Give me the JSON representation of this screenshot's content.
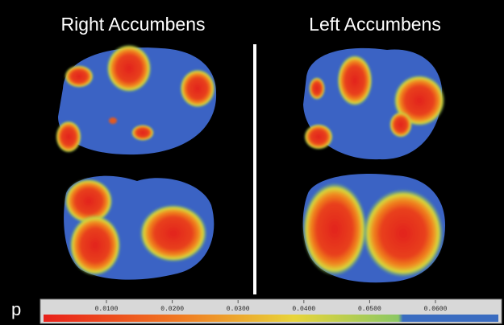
{
  "panels": [
    {
      "title": "Right Accumbens"
    },
    {
      "title": "Left Accumbens"
    }
  ],
  "colorbar": {
    "label": "p",
    "ticks": [
      "0.0100",
      "0.0200",
      "0.0300",
      "0.0400",
      "0.0500",
      "0.0600"
    ]
  }
}
